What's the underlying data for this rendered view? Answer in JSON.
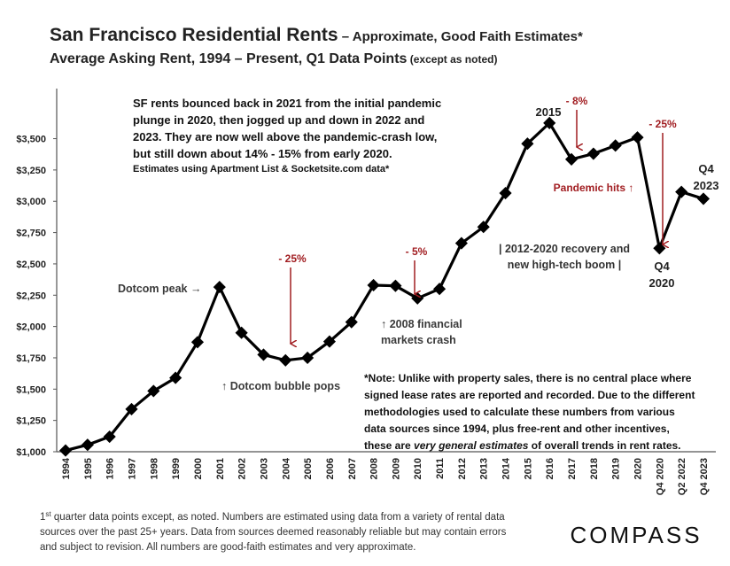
{
  "chart_data": {
    "type": "line",
    "title": [
      "San Francisco Residential Rents",
      " – Approximate, Good Faith Estimates*"
    ],
    "subtitle": [
      "Average Asking Rent, 1994 – Present, Q1 Data Points",
      " (except as noted)"
    ],
    "categories": [
      "1994",
      "1995",
      "1996",
      "1997",
      "1998",
      "1999",
      "2000",
      "2001",
      "2002",
      "2003",
      "2004",
      "2005",
      "2006",
      "2007",
      "2008",
      "2009",
      "2010",
      "2011",
      "2012",
      "2013",
      "2014",
      "2015",
      "2016",
      "2017",
      "2018",
      "2019",
      "2020",
      "Q4 2020",
      "Q2 2022",
      "Q4 2023"
    ],
    "values": [
      1010,
      1055,
      1120,
      1340,
      1485,
      1590,
      1875,
      2315,
      1950,
      1775,
      1730,
      1750,
      1880,
      2035,
      2330,
      2325,
      2225,
      2300,
      2665,
      2795,
      3065,
      3460,
      3625,
      3335,
      3380,
      3445,
      3510,
      2625,
      3075,
      3020
    ],
    "color": "#000000",
    "marker": "diamond",
    "ylim": [
      1000,
      3900
    ],
    "yticks": [
      {
        "value": 1000,
        "label": "$1,000"
      },
      {
        "value": 1250,
        "label": "$1,250"
      },
      {
        "value": 1500,
        "label": "$1,500"
      },
      {
        "value": 1750,
        "label": "$1,750"
      },
      {
        "value": 2000,
        "label": "$2,000"
      },
      {
        "value": 2250,
        "label": "$2,250"
      },
      {
        "value": 2500,
        "label": "$2,500"
      },
      {
        "value": 2750,
        "label": "$2,750"
      },
      {
        "value": 3000,
        "label": "$3,000"
      },
      {
        "value": 3250,
        "label": "$3,250"
      },
      {
        "value": 3500,
        "label": "$3,500"
      }
    ],
    "grid": false,
    "annotations": [
      {
        "lines": [
          "SF rents bounced back in 2021 from the initial pandemic",
          "plunge in 2020, then jogged up and down in 2022 and",
          "2023. They are now well above the pandemic-crash low,",
          "but still down about 14% - 15% from early 2020."
        ],
        "color": "#111111"
      },
      {
        "lines": [
          "Estimates using Apartment List & Socketsite.com data*"
        ],
        "color": "#111111"
      },
      {
        "lines": [
          "2015"
        ],
        "color": "#222222"
      },
      {
        "lines": [
          "- 8%"
        ],
        "color": "#a11d21"
      },
      {
        "lines": [
          "- 25%"
        ],
        "color": "#a11d21"
      },
      {
        "lines": [
          "Q4",
          "2023"
        ],
        "color": "#222222"
      },
      {
        "lines": [
          "Pandemic hits ↑"
        ],
        "color": "#a11d21"
      },
      {
        "lines": [
          "| 2012-2020 recovery and",
          "new high-tech boom |"
        ],
        "color": "#333333"
      },
      {
        "lines": [
          "Q4",
          "2020"
        ],
        "color": "#222222"
      },
      {
        "lines": [
          "- 5%"
        ],
        "color": "#a11d21"
      },
      {
        "lines": [
          "- 25%"
        ],
        "color": "#a11d21"
      },
      {
        "lines": [
          "Dotcom peak →"
        ],
        "color": "#3a3a3a"
      },
      {
        "lines": [
          "↑ 2008 financial",
          "markets crash"
        ],
        "color": "#3a3a3a"
      },
      {
        "lines": [
          "↑ Dotcom bubble pops"
        ],
        "color": "#3a3a3a"
      },
      {
        "lines": [
          "*Note: Unlike with property sales, there is no central place where",
          "signed lease rates are reported and recorded. Due to the different",
          "methodologies used to calculate these numbers from various",
          "data sources since 1994, plus free-rent and other incentives,",
          [
            "these are ",
            "very general estimates",
            " of overall trends in rent rates."
          ]
        ],
        "color": "#111111"
      }
    ]
  },
  "footnote": [
    [
      "1",
      "st",
      " quarter data points except, as noted. Numbers are estimated using data from a variety of rental data"
    ],
    "sources over the past 25+ years. Data from sources deemed reasonably reliable but may contain errors",
    "and subject to revision. All numbers are good-faith estimates and very approximate."
  ],
  "logo": "COMPASS"
}
